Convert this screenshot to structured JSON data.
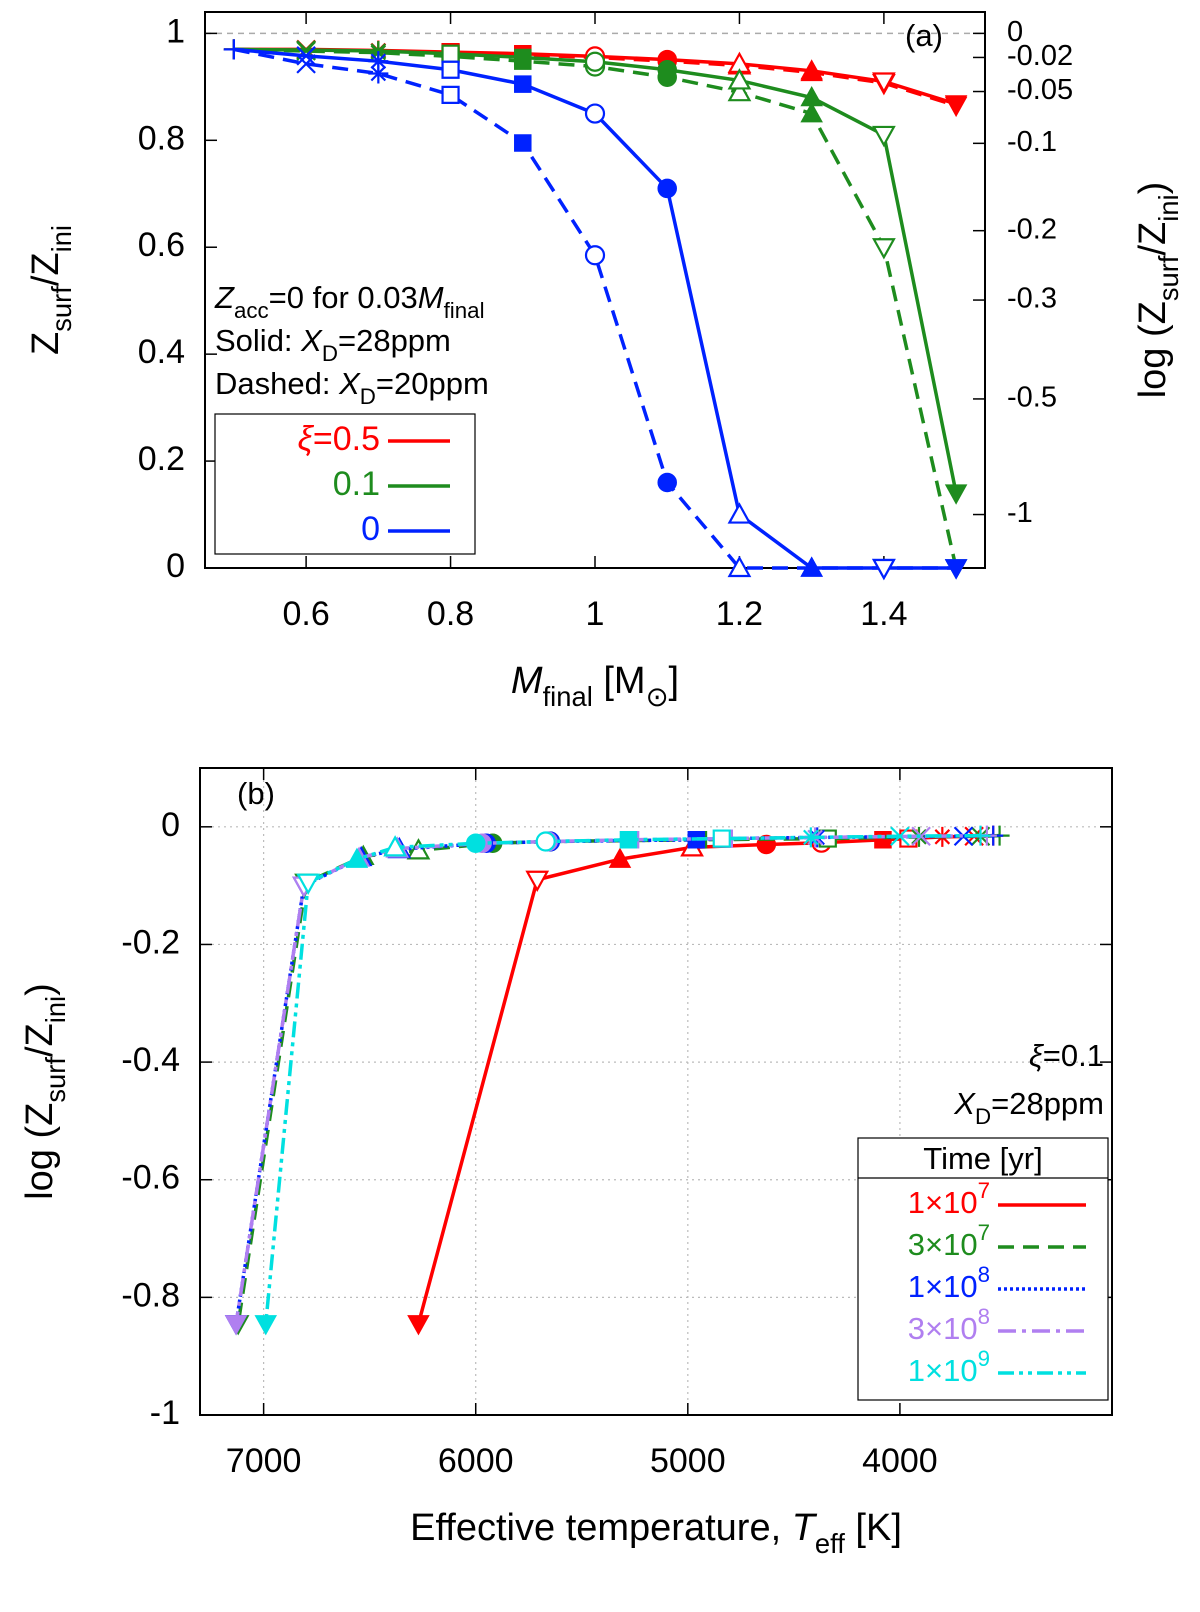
{
  "chart_data": [
    {
      "type": "line",
      "panel_label": "(a)",
      "x_label": [
        {
          "t": "M",
          "s": "i"
        },
        {
          "t": "final",
          "s": "sub"
        },
        {
          "t": " [M"
        },
        {
          "t": "⊙",
          "s": "sub"
        },
        {
          "t": "]"
        }
      ],
      "y_label": [
        {
          "t": "Z"
        },
        {
          "t": "surf",
          "s": "sub"
        },
        {
          "t": "/Z"
        },
        {
          "t": "ini",
          "s": "sub"
        }
      ],
      "y2_label": [
        {
          "t": "log (Z"
        },
        {
          "t": "surf",
          "s": "sub"
        },
        {
          "t": "/Z"
        },
        {
          "t": "ini",
          "s": "sub"
        },
        {
          "t": ")"
        }
      ],
      "notes": [
        [
          {
            "t": "Z",
            "s": "i"
          },
          {
            "t": "acc",
            "s": "sub"
          },
          {
            "t": "=0 for 0.03"
          },
          {
            "t": "M",
            "s": "i"
          },
          {
            "t": "final",
            "s": "sub"
          }
        ],
        [
          {
            "t": "Solid: "
          },
          {
            "t": "X",
            "s": "i"
          },
          {
            "t": "D",
            "s": "sub"
          },
          {
            "t": "=28ppm"
          }
        ],
        [
          {
            "t": "Dashed: "
          },
          {
            "t": "X",
            "s": "i"
          },
          {
            "t": "D",
            "s": "sub"
          },
          {
            "t": "=20ppm"
          }
        ]
      ],
      "x": [
        0.5,
        0.6,
        0.7,
        0.8,
        0.9,
        1,
        1.1,
        1.2,
        1.3,
        1.4,
        1.5
      ],
      "markers": [
        "plus",
        "cross",
        "star",
        "square-open",
        "square",
        "circle-open",
        "circle",
        "tri-open",
        "tri",
        "dtri-open",
        "dtri"
      ],
      "series": [
        {
          "name": [
            {
              "t": "ξ",
              "s": "i"
            },
            {
              "t": "=0.5"
            }
          ],
          "color": "#ff0000",
          "lines": [
            {
              "style": "solid",
              "values": [
                0.97,
                0.97,
                0.968,
                0.965,
                0.962,
                0.957,
                0.951,
                0.943,
                0.93,
                0.91,
                0.868
              ]
            },
            {
              "style": "dashed",
              "values": [
                0.97,
                0.969,
                0.967,
                0.963,
                0.96,
                0.955,
                0.948,
                0.94,
                0.927,
                0.907,
                0.865
              ]
            }
          ]
        },
        {
          "name": "0.1",
          "color": "#1e8c1e",
          "lines": [
            {
              "style": "solid",
              "values": [
                0.97,
                0.969,
                0.967,
                0.962,
                0.955,
                0.947,
                0.932,
                0.912,
                0.88,
                0.81,
                0.14
              ]
            },
            {
              "style": "dashed",
              "values": [
                0.97,
                0.967,
                0.964,
                0.957,
                0.948,
                0.938,
                0.918,
                0.89,
                0.85,
                0.6,
                0
              ]
            }
          ]
        },
        {
          "name": "0",
          "color": "#0022ff",
          "lines": [
            {
              "style": "solid",
              "values": [
                0.97,
                0.958,
                0.948,
                0.932,
                0.905,
                0.85,
                0.71,
                0.1,
                0,
                0,
                0
              ]
            },
            {
              "style": "dashed",
              "values": [
                0.97,
                0.943,
                0.925,
                0.885,
                0.795,
                0.585,
                0.16,
                0,
                0,
                0,
                0
              ]
            }
          ]
        }
      ],
      "xlim": [
        0.46,
        1.54
      ],
      "xticks": [
        0.6,
        0.8,
        1,
        1.2,
        1.4
      ],
      "ylim": [
        0,
        1.04
      ],
      "yticks": [
        0,
        0.2,
        0.4,
        0.6,
        0.8,
        1
      ],
      "y2ticks": [
        0,
        -0.02,
        -0.05,
        -0.1,
        -0.2,
        -0.3,
        -0.5,
        -1
      ],
      "y2scale": "log10",
      "reference_line": 1,
      "grid": false,
      "legend": "lower left"
    },
    {
      "type": "line",
      "panel_label": "(b)",
      "x_label": [
        {
          "t": "Effective temperature, "
        },
        {
          "t": "T",
          "s": "i"
        },
        {
          "t": "eff",
          "s": "sub"
        },
        {
          "t": " [K]"
        }
      ],
      "y_label": [
        {
          "t": "log (Z"
        },
        {
          "t": "surf",
          "s": "sub"
        },
        {
          "t": "/Z"
        },
        {
          "t": "ini",
          "s": "sub"
        },
        {
          "t": ")"
        }
      ],
      "notes": [
        [
          {
            "t": "ξ",
            "s": "i"
          },
          {
            "t": "=0.1"
          }
        ],
        [
          {
            "t": "X",
            "s": "i"
          },
          {
            "t": "D",
            "s": "sub"
          },
          {
            "t": "=28ppm"
          }
        ]
      ],
      "legend_title": "Time [yr]",
      "markers": [
        "plus",
        "cross",
        "star",
        "square-open",
        "square",
        "circle-open",
        "circle",
        "tri-open",
        "tri",
        "dtri-open",
        "dtri"
      ],
      "series": [
        {
          "name": [
            {
              "t": "1×10"
            },
            {
              "t": "7",
              "s": "sup"
            }
          ],
          "color": "#ff0000",
          "style": "solid",
          "x": [
            3560,
            3650,
            3800,
            3960,
            4080,
            4370,
            4630,
            4980,
            5320,
            5710,
            6270
          ],
          "values": [
            -0.015,
            -0.016,
            -0.017,
            -0.02,
            -0.022,
            -0.027,
            -0.03,
            -0.035,
            -0.055,
            -0.09,
            -0.845
          ]
        },
        {
          "name": [
            {
              "t": "3×10"
            },
            {
              "t": "7",
              "s": "sup"
            }
          ],
          "color": "#1e8c1e",
          "style": "dashed",
          "x": [
            3530,
            3620,
            3910,
            4340,
            4950,
            5650,
            5920,
            6270,
            6530,
            6800,
            7120
          ],
          "values": [
            -0.015,
            -0.016,
            -0.017,
            -0.02,
            -0.022,
            -0.025,
            -0.028,
            -0.04,
            -0.05,
            -0.095,
            -0.845
          ]
        },
        {
          "name": [
            {
              "t": "1×10"
            },
            {
              "t": "8",
              "s": "sup"
            }
          ],
          "color": "#0022ff",
          "style": "dotted",
          "x": [
            3560,
            3700,
            4390,
            4830,
            4960,
            5650,
            5950,
            6360,
            6540,
            6810,
            7130
          ],
          "values": [
            -0.015,
            -0.016,
            -0.018,
            -0.02,
            -0.022,
            -0.025,
            -0.028,
            -0.038,
            -0.052,
            -0.1,
            -0.845
          ]
        },
        {
          "name": [
            {
              "t": "3×10"
            },
            {
              "t": "8",
              "s": "sup"
            }
          ],
          "color": "#b07ff0",
          "style": "dashdot",
          "x": [
            3590,
            3900,
            4400,
            4830,
            5270,
            5660,
            5970,
            6370,
            6550,
            6810,
            7130
          ],
          "values": [
            -0.015,
            -0.016,
            -0.018,
            -0.02,
            -0.022,
            -0.025,
            -0.028,
            -0.037,
            -0.053,
            -0.1,
            -0.845
          ]
        },
        {
          "name": [
            {
              "t": "1×10"
            },
            {
              "t": "9",
              "s": "sup"
            }
          ],
          "color": "#00e0e0",
          "style": "dashdotdot",
          "x": [
            3620,
            4000,
            4420,
            4840,
            5280,
            5670,
            6000,
            6380,
            6560,
            6790,
            6990
          ],
          "values": [
            -0.015,
            -0.016,
            -0.018,
            -0.02,
            -0.022,
            -0.025,
            -0.028,
            -0.035,
            -0.055,
            -0.095,
            -0.845
          ]
        }
      ],
      "xlim": [
        7300,
        3000
      ],
      "xticks": [
        7000,
        6000,
        5000,
        4000
      ],
      "ylim": [
        -1,
        0.1
      ],
      "yticks": [
        0,
        -0.2,
        -0.4,
        -0.6,
        -0.8,
        -1
      ],
      "grid": true,
      "legend": "lower right"
    }
  ]
}
